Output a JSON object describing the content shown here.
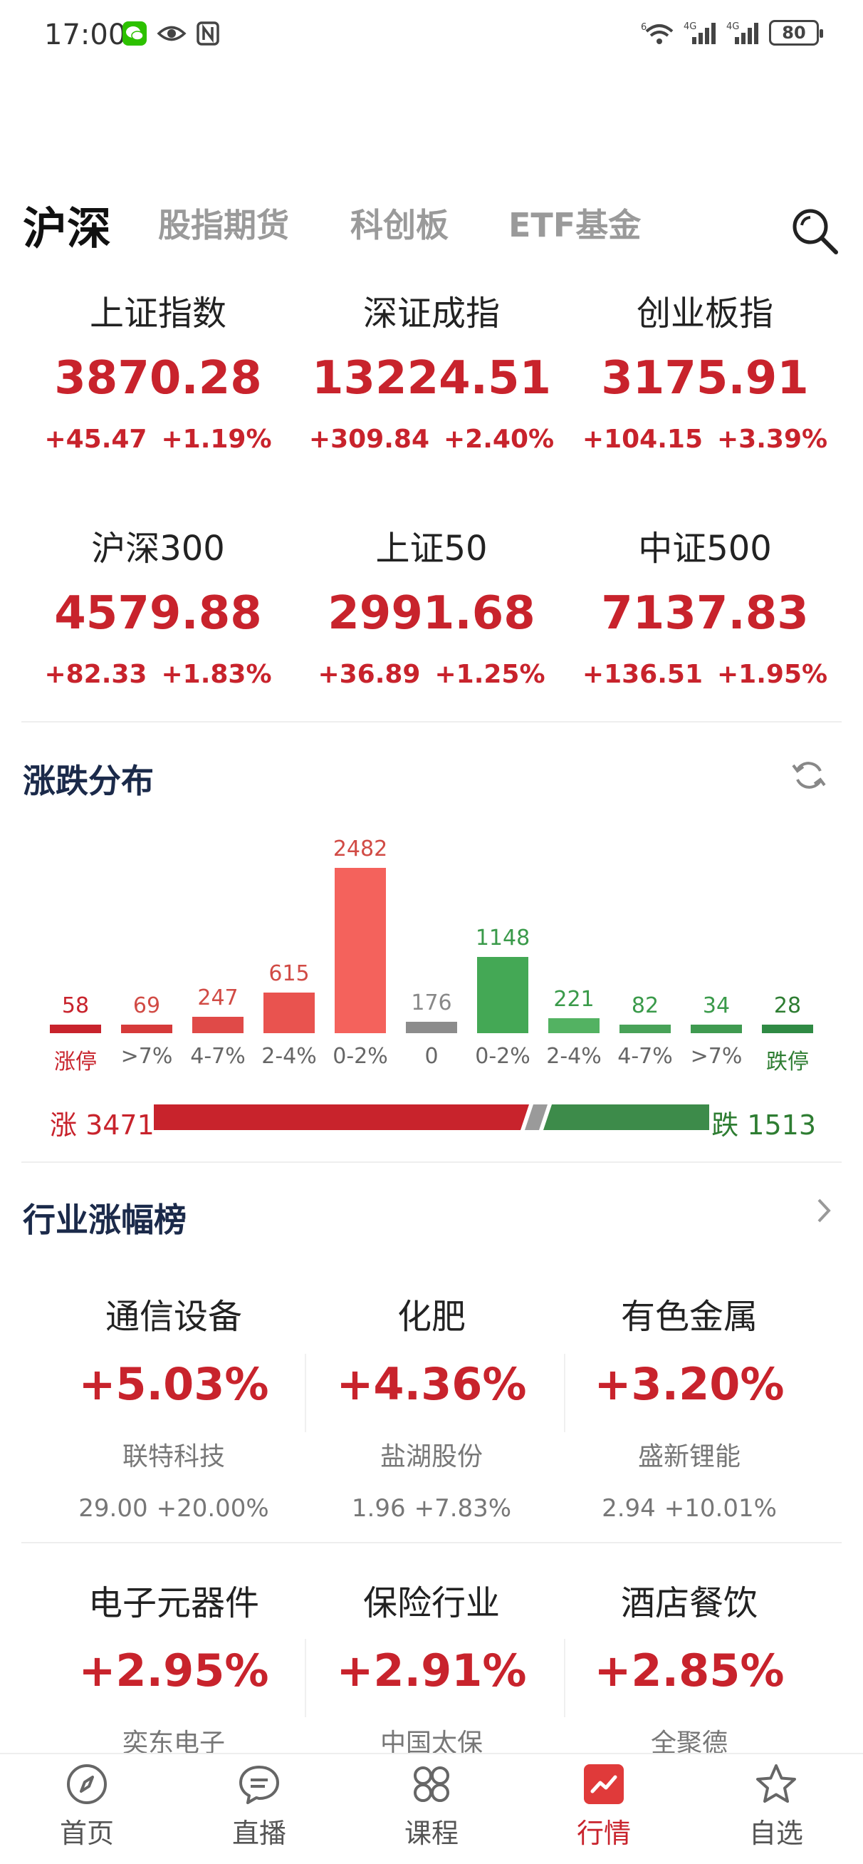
{
  "status_bar": {
    "time": "17:00",
    "battery": "80"
  },
  "tabs": [
    {
      "label": "沪深"
    },
    {
      "label": "股指期货"
    },
    {
      "label": "科创板"
    },
    {
      "label": "ETF基金"
    }
  ],
  "indices": [
    {
      "name": "上证指数",
      "value": "3870.28",
      "change": "+45.47",
      "pct": "+1.19%"
    },
    {
      "name": "深证成指",
      "value": "13224.51",
      "change": "+309.84",
      "pct": "+2.40%"
    },
    {
      "name": "创业板指",
      "value": "3175.91",
      "change": "+104.15",
      "pct": "+3.39%"
    },
    {
      "name": "沪深300",
      "value": "4579.88",
      "change": "+82.33",
      "pct": "+1.83%"
    },
    {
      "name": "上证50",
      "value": "2991.68",
      "change": "+36.89",
      "pct": "+1.25%"
    },
    {
      "name": "中证500",
      "value": "7137.83",
      "change": "+136.51",
      "pct": "+1.95%"
    }
  ],
  "distribution": {
    "title": "涨跌分布",
    "up_label": "涨 3471",
    "down_label": "跌 1513",
    "up_count": 3471,
    "down_count": 1513
  },
  "chart_data": {
    "type": "bar",
    "categories": [
      "涨停",
      ">7%",
      "4-7%",
      "2-4%",
      "0-2%",
      "0",
      "0-2%",
      "2-4%",
      "4-7%",
      ">7%",
      "跌停"
    ],
    "values": [
      58,
      69,
      247,
      615,
      2482,
      176,
      1148,
      221,
      82,
      34,
      28
    ],
    "value_labels": [
      "58",
      "69",
      "247",
      "615",
      "2482",
      "176",
      "1148",
      "221",
      "82",
      "34",
      "28"
    ],
    "colors": [
      "#c8232c",
      "#d63a3a",
      "#e04a48",
      "#e9534f",
      "#f4625c",
      "#8c8c8c",
      "#44a855",
      "#53b262",
      "#48a258",
      "#3f9a50",
      "#2f8a44"
    ],
    "label_colors": [
      "#c8232c",
      "#666666",
      "#666666",
      "#666666",
      "#666666",
      "#666666",
      "#666666",
      "#666666",
      "#666666",
      "#666666",
      "#2e7d32"
    ],
    "value_colors": [
      "#c8232c",
      "#d14b45",
      "#d14b45",
      "#d14b45",
      "#d14b45",
      "#888888",
      "#3a9a4a",
      "#3a9a4a",
      "#3a9a4a",
      "#3a9a4a",
      "#2e7d32"
    ]
  },
  "industry": {
    "title": "行业涨幅榜",
    "items": [
      {
        "name": "通信设备",
        "pct": "+5.03%",
        "stock": "联特科技",
        "price": "29.00",
        "stock_pct": "+20.00%"
      },
      {
        "name": "化肥",
        "pct": "+4.36%",
        "stock": "盐湖股份",
        "price": "1.96",
        "stock_pct": "+7.83%"
      },
      {
        "name": "有色金属",
        "pct": "+3.20%",
        "stock": "盛新锂能",
        "price": "2.94",
        "stock_pct": "+10.01%"
      },
      {
        "name": "电子元器件",
        "pct": "+2.95%",
        "stock": "奕东电子"
      },
      {
        "name": "保险行业",
        "pct": "+2.91%",
        "stock": "中国太保"
      },
      {
        "name": "酒店餐饮",
        "pct": "+2.85%",
        "stock": "全聚德"
      }
    ]
  },
  "nav": [
    {
      "label": "首页",
      "icon": "compass-icon"
    },
    {
      "label": "直播",
      "icon": "chat-bubble-icon"
    },
    {
      "label": "课程",
      "icon": "grid-icon"
    },
    {
      "label": "行情",
      "icon": "chart-icon"
    },
    {
      "label": "自选",
      "icon": "star-icon"
    }
  ],
  "colors": {
    "up": "#c8232c",
    "down": "#2e7d32",
    "accent": "#e03a3a"
  }
}
